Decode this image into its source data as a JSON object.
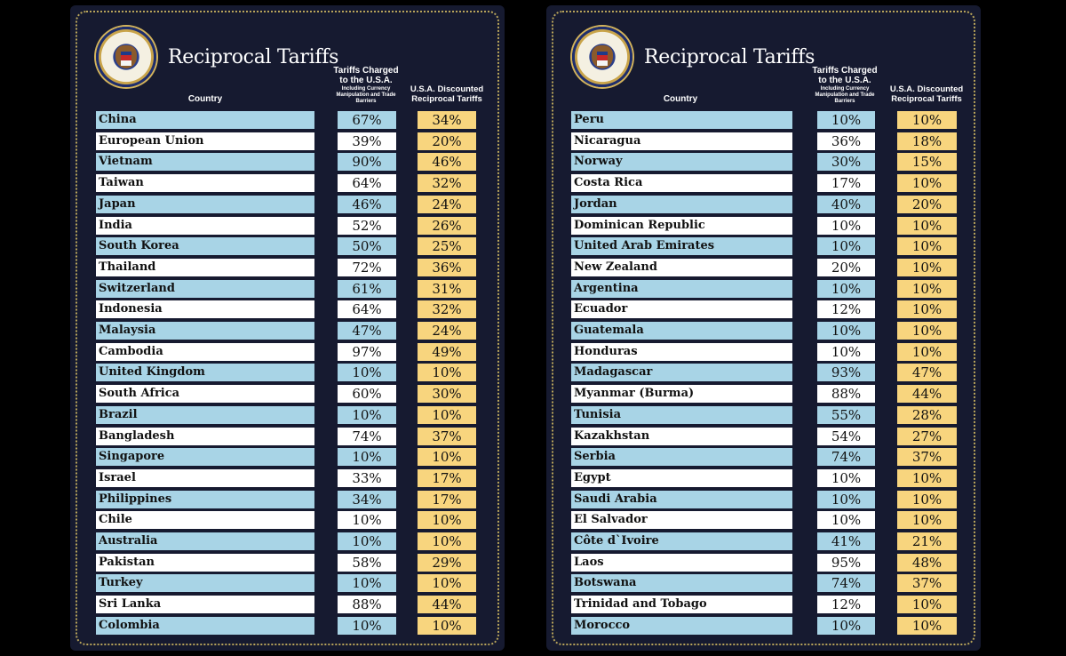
{
  "headers": {
    "title": "Reciprocal Tariffs",
    "country": "Country",
    "charged_main": "Tariffs Charged to the U.S.A.",
    "charged_sub": "Including Currency Manipulation and Trade Barriers",
    "discounted": "U.S.A. Discounted Reciprocal Tariffs"
  },
  "colors": {
    "panel_bg": "#161a30",
    "row_blue": "#a8d4e6",
    "row_white": "#ffffff",
    "discount_yellow": "#f8d57e",
    "border_gold": "#b8a45a"
  },
  "seal": "presidential-seal",
  "left_table": [
    {
      "country": "China",
      "charged": "67%",
      "discounted": "34%"
    },
    {
      "country": "European Union",
      "charged": "39%",
      "discounted": "20%"
    },
    {
      "country": "Vietnam",
      "charged": "90%",
      "discounted": "46%"
    },
    {
      "country": "Taiwan",
      "charged": "64%",
      "discounted": "32%"
    },
    {
      "country": "Japan",
      "charged": "46%",
      "discounted": "24%"
    },
    {
      "country": "India",
      "charged": "52%",
      "discounted": "26%"
    },
    {
      "country": "South Korea",
      "charged": "50%",
      "discounted": "25%"
    },
    {
      "country": "Thailand",
      "charged": "72%",
      "discounted": "36%"
    },
    {
      "country": "Switzerland",
      "charged": "61%",
      "discounted": "31%"
    },
    {
      "country": "Indonesia",
      "charged": "64%",
      "discounted": "32%"
    },
    {
      "country": "Malaysia",
      "charged": "47%",
      "discounted": "24%"
    },
    {
      "country": "Cambodia",
      "charged": "97%",
      "discounted": "49%"
    },
    {
      "country": "United Kingdom",
      "charged": "10%",
      "discounted": "10%"
    },
    {
      "country": "South Africa",
      "charged": "60%",
      "discounted": "30%"
    },
    {
      "country": "Brazil",
      "charged": "10%",
      "discounted": "10%"
    },
    {
      "country": "Bangladesh",
      "charged": "74%",
      "discounted": "37%"
    },
    {
      "country": "Singapore",
      "charged": "10%",
      "discounted": "10%"
    },
    {
      "country": "Israel",
      "charged": "33%",
      "discounted": "17%"
    },
    {
      "country": "Philippines",
      "charged": "34%",
      "discounted": "17%"
    },
    {
      "country": "Chile",
      "charged": "10%",
      "discounted": "10%"
    },
    {
      "country": "Australia",
      "charged": "10%",
      "discounted": "10%"
    },
    {
      "country": "Pakistan",
      "charged": "58%",
      "discounted": "29%"
    },
    {
      "country": "Turkey",
      "charged": "10%",
      "discounted": "10%"
    },
    {
      "country": "Sri Lanka",
      "charged": "88%",
      "discounted": "44%"
    },
    {
      "country": "Colombia",
      "charged": "10%",
      "discounted": "10%"
    }
  ],
  "right_table": [
    {
      "country": "Peru",
      "charged": "10%",
      "discounted": "10%"
    },
    {
      "country": "Nicaragua",
      "charged": "36%",
      "discounted": "18%"
    },
    {
      "country": "Norway",
      "charged": "30%",
      "discounted": "15%"
    },
    {
      "country": "Costa Rica",
      "charged": "17%",
      "discounted": "10%"
    },
    {
      "country": "Jordan",
      "charged": "40%",
      "discounted": "20%"
    },
    {
      "country": "Dominican Republic",
      "charged": "10%",
      "discounted": "10%"
    },
    {
      "country": "United Arab Emirates",
      "charged": "10%",
      "discounted": "10%"
    },
    {
      "country": "New Zealand",
      "charged": "20%",
      "discounted": "10%"
    },
    {
      "country": "Argentina",
      "charged": "10%",
      "discounted": "10%"
    },
    {
      "country": "Ecuador",
      "charged": "12%",
      "discounted": "10%"
    },
    {
      "country": "Guatemala",
      "charged": "10%",
      "discounted": "10%"
    },
    {
      "country": "Honduras",
      "charged": "10%",
      "discounted": "10%"
    },
    {
      "country": "Madagascar",
      "charged": "93%",
      "discounted": "47%"
    },
    {
      "country": "Myanmar (Burma)",
      "charged": "88%",
      "discounted": "44%"
    },
    {
      "country": "Tunisia",
      "charged": "55%",
      "discounted": "28%"
    },
    {
      "country": "Kazakhstan",
      "charged": "54%",
      "discounted": "27%"
    },
    {
      "country": "Serbia",
      "charged": "74%",
      "discounted": "37%"
    },
    {
      "country": "Egypt",
      "charged": "10%",
      "discounted": "10%"
    },
    {
      "country": "Saudi Arabia",
      "charged": "10%",
      "discounted": "10%"
    },
    {
      "country": "El Salvador",
      "charged": "10%",
      "discounted": "10%"
    },
    {
      "country": "Côte d`Ivoire",
      "charged": "41%",
      "discounted": "21%"
    },
    {
      "country": "Laos",
      "charged": "95%",
      "discounted": "48%"
    },
    {
      "country": "Botswana",
      "charged": "74%",
      "discounted": "37%"
    },
    {
      "country": "Trinidad and Tobago",
      "charged": "12%",
      "discounted": "10%"
    },
    {
      "country": "Morocco",
      "charged": "10%",
      "discounted": "10%"
    }
  ]
}
